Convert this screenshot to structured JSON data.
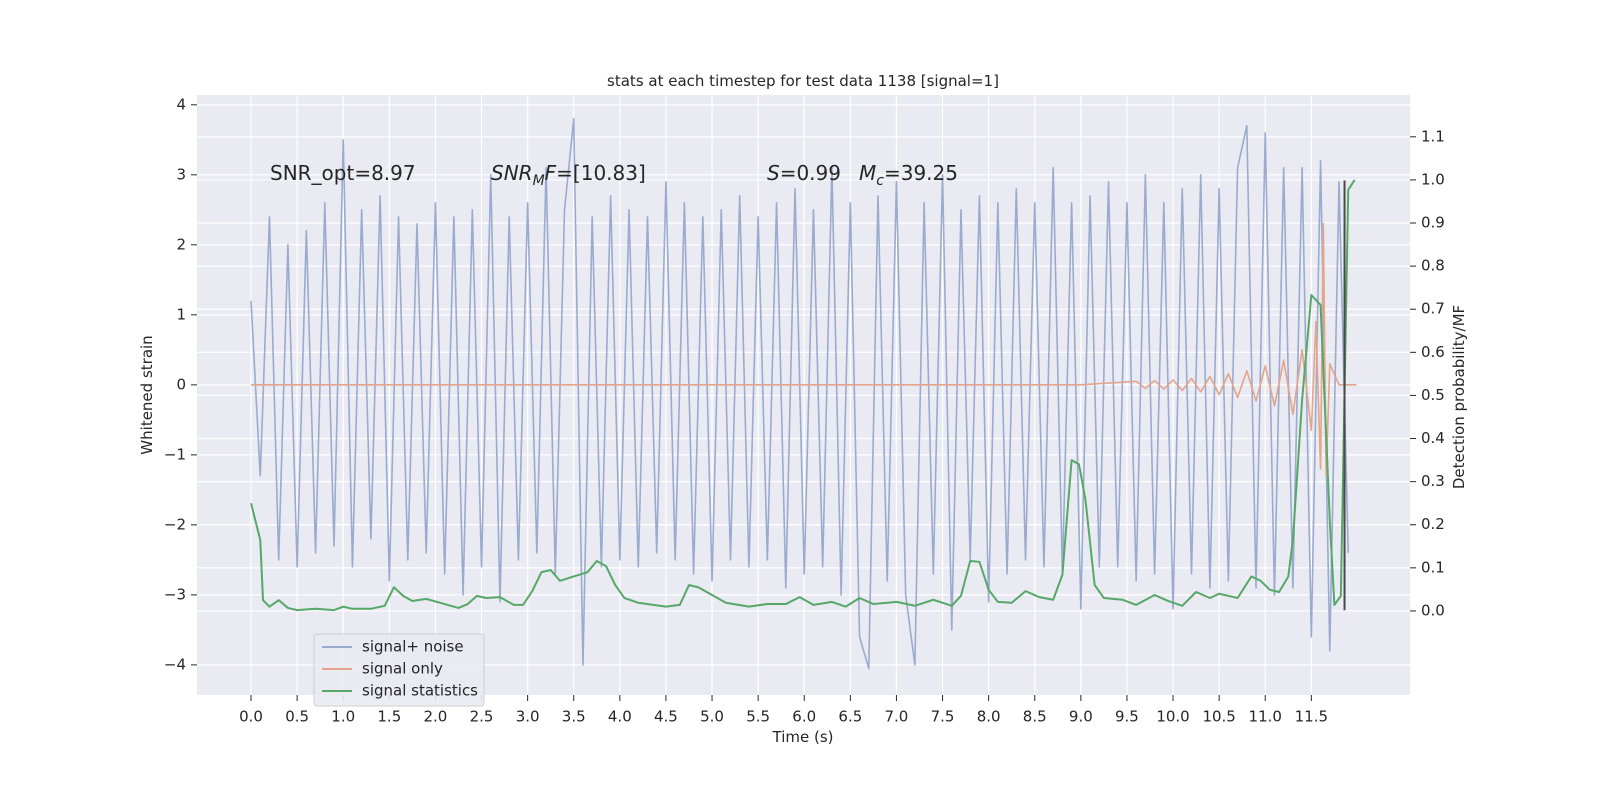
{
  "chart_data": {
    "type": "line",
    "title": "stats at each timestep for test data 1138 [signal=1]",
    "xlabel": "Time (s)",
    "ylabel": "Whitened strain",
    "y2label": "Detection probability/MF",
    "xlim": [
      -0.586,
      12.57
    ],
    "ylim": [
      -4.43,
      4.14
    ],
    "y2lim": [
      -0.195,
      1.197
    ],
    "xticks": [
      {
        "value": 0,
        "label": "0.0"
      },
      0.5,
      {
        "value": 1,
        "label": "1.0"
      },
      1.5,
      {
        "value": 2,
        "label": "2.0"
      },
      2.5,
      {
        "value": 3,
        "label": "3.0"
      },
      3.5,
      {
        "value": 4,
        "label": "4.0"
      },
      4.5,
      {
        "value": 5,
        "label": "5.0"
      },
      5.5,
      {
        "value": 6,
        "label": "6.0"
      },
      6.5,
      {
        "value": 7,
        "label": "7.0"
      },
      7.5,
      {
        "value": 8,
        "label": "8.0"
      },
      8.5,
      {
        "value": 9,
        "label": "9.0"
      },
      9.5,
      {
        "value": 10,
        "label": "10.0"
      },
      10.5,
      {
        "value": 11,
        "label": "11.0"
      },
      11.5
    ],
    "yticks": [
      {
        "value": -4,
        "label": "−4"
      },
      {
        "value": -3,
        "label": "−3"
      },
      {
        "value": -2,
        "label": "−2"
      },
      {
        "value": -1,
        "label": "−1"
      },
      0,
      1,
      2,
      3,
      4
    ],
    "y2ticks": [
      {
        "value": 0,
        "label": "0.0"
      },
      0.1,
      0.2,
      0.3,
      0.4,
      0.5,
      0.6,
      0.7,
      0.8,
      0.9,
      {
        "value": 1,
        "label": "1.0"
      },
      1.1
    ],
    "grid": true,
    "background": "#eaeaf2",
    "legend": "lower left",
    "annotations": [
      {
        "parts": [
          {
            "text": "SNR_opt=8.97"
          }
        ]
      },
      {
        "parts": [
          {
            "text": "SNR",
            "style": "italic"
          },
          {
            "text": "M",
            "style": "sub"
          },
          {
            "text": "F",
            "style": "italic"
          },
          {
            "text": "=[10.83]"
          }
        ]
      },
      {
        "parts": [
          {
            "text": "S",
            "style": "italic"
          },
          {
            "text": "=0.99"
          }
        ]
      },
      {
        "parts": [
          {
            "text": "M",
            "style": "italic"
          },
          {
            "text": "c",
            "style": "sub"
          },
          {
            "text": "=39.25"
          }
        ]
      }
    ],
    "vline": {
      "x": 11.86,
      "ymin": -3.22,
      "ymax": 2.92,
      "color": "#4a4a4a"
    },
    "series": [
      {
        "name": "signal+ noise",
        "color": "#9aabcf",
        "x": [
          0,
          0.1,
          0.2,
          0.3,
          0.4,
          0.5,
          0.6,
          0.7,
          0.8,
          0.9,
          1,
          1.1,
          1.2,
          1.3,
          1.4,
          1.5,
          1.6,
          1.7,
          1.8,
          1.9,
          2,
          2.1,
          2.2,
          2.3,
          2.4,
          2.5,
          2.6,
          2.7,
          2.8,
          2.9,
          3,
          3.1,
          3.2,
          3.3,
          3.4,
          3.5,
          3.6,
          3.7,
          3.8,
          3.9,
          4,
          4.1,
          4.2,
          4.3,
          4.4,
          4.5,
          4.6,
          4.7,
          4.8,
          4.9,
          5,
          5.1,
          5.2,
          5.3,
          5.4,
          5.5,
          5.6,
          5.7,
          5.8,
          5.9,
          6,
          6.1,
          6.2,
          6.3,
          6.4,
          6.5,
          6.6,
          6.7,
          6.8,
          6.9,
          7,
          7.1,
          7.2,
          7.3,
          7.4,
          7.5,
          7.6,
          7.7,
          7.8,
          7.9,
          8,
          8.1,
          8.2,
          8.3,
          8.4,
          8.5,
          8.6,
          8.7,
          8.8,
          8.9,
          9,
          9.1,
          9.2,
          9.3,
          9.4,
          9.5,
          9.6,
          9.7,
          9.8,
          9.9,
          10,
          10.1,
          10.2,
          10.3,
          10.4,
          10.5,
          10.6,
          10.7,
          10.8,
          10.9,
          11,
          11.1,
          11.2,
          11.3,
          11.4,
          11.5,
          11.6,
          11.7,
          11.8,
          11.9
        ],
        "values": [
          1.2,
          -1.3,
          2.4,
          -2.5,
          2.0,
          -2.6,
          2.2,
          -2.4,
          2.6,
          -2.3,
          3.5,
          -2.6,
          2.5,
          -2.2,
          2.7,
          -2.8,
          2.4,
          -2.5,
          2.3,
          -2.4,
          2.6,
          -2.7,
          2.4,
          -3.0,
          2.5,
          -2.6,
          3.0,
          -3.1,
          2.4,
          -2.5,
          2.6,
          -2.4,
          3.1,
          -2.7,
          2.5,
          3.8,
          -4.0,
          2.4,
          -2.6,
          2.7,
          -2.5,
          2.5,
          -2.6,
          2.4,
          -2.4,
          2.9,
          -2.5,
          2.6,
          -2.7,
          2.4,
          -2.8,
          2.5,
          -2.5,
          2.7,
          -2.6,
          2.4,
          -2.5,
          2.6,
          -2.9,
          2.8,
          -2.7,
          2.5,
          -2.6,
          3.1,
          -3.0,
          2.6,
          -3.6,
          -4.05,
          2.7,
          -2.8,
          2.9,
          -3.0,
          -4.0,
          2.6,
          -2.7,
          3.0,
          -3.5,
          2.5,
          -2.5,
          2.7,
          -3.1,
          2.6,
          -2.7,
          2.8,
          -2.5,
          2.6,
          -2.6,
          3.1,
          -2.7,
          2.6,
          -3.2,
          2.7,
          -2.6,
          2.9,
          -2.6,
          2.6,
          -2.8,
          3.0,
          -2.7,
          2.6,
          -3.2,
          2.8,
          -2.7,
          3.0,
          -2.9,
          2.8,
          -2.8,
          3.1,
          3.7,
          -2.9,
          3.6,
          -3.0,
          3.1,
          -2.9,
          3.1,
          -3.6,
          3.2,
          -3.8,
          2.9,
          -2.4
        ]
      },
      {
        "name": "signal only",
        "color": "#e3a58c",
        "x": [
          0,
          9.0,
          9.6,
          9.7,
          9.8,
          9.9,
          10.0,
          10.1,
          10.2,
          10.3,
          10.4,
          10.5,
          10.6,
          10.7,
          10.8,
          10.9,
          11.0,
          11.1,
          11.2,
          11.3,
          11.4,
          11.5,
          11.55,
          11.6,
          11.63,
          11.66,
          11.7,
          11.8,
          11.99
        ],
        "values": [
          0,
          0,
          0.05,
          -0.05,
          0.06,
          -0.06,
          0.07,
          -0.08,
          0.09,
          -0.1,
          0.12,
          -0.14,
          0.16,
          -0.18,
          0.2,
          -0.23,
          0.27,
          -0.3,
          0.35,
          -0.42,
          0.5,
          -0.65,
          0.9,
          -1.2,
          2.3,
          -1.3,
          0.3,
          0,
          0
        ]
      },
      {
        "name": "signal statistics",
        "color": "#55a868",
        "axis": "y2",
        "x": [
          0,
          0.1,
          0.13,
          0.2,
          0.3,
          0.4,
          0.5,
          0.7,
          0.9,
          1.0,
          1.1,
          1.3,
          1.45,
          1.55,
          1.65,
          1.75,
          1.9,
          2.1,
          2.25,
          2.35,
          2.45,
          2.55,
          2.7,
          2.85,
          2.95,
          3.05,
          3.15,
          3.25,
          3.35,
          3.5,
          3.65,
          3.75,
          3.85,
          3.95,
          4.05,
          4.2,
          4.5,
          4.65,
          4.75,
          4.85,
          5.0,
          5.15,
          5.4,
          5.6,
          5.8,
          5.95,
          6.1,
          6.3,
          6.45,
          6.6,
          6.75,
          7.0,
          7.2,
          7.4,
          7.6,
          7.7,
          7.8,
          7.9,
          8.0,
          8.1,
          8.25,
          8.4,
          8.55,
          8.7,
          8.8,
          8.9,
          8.98,
          9.05,
          9.15,
          9.25,
          9.45,
          9.6,
          9.8,
          9.95,
          10.1,
          10.25,
          10.4,
          10.5,
          10.7,
          10.85,
          10.95,
          11.05,
          11.15,
          11.25,
          11.3,
          11.4,
          11.5,
          11.6,
          11.7,
          11.75,
          11.82,
          11.9,
          11.97
        ],
        "values": [
          0.25,
          0.165,
          0.025,
          0.01,
          0.025,
          0.007,
          0.002,
          0.005,
          0.002,
          0.01,
          0.005,
          0.005,
          0.012,
          0.055,
          0.035,
          0.023,
          0.028,
          0.016,
          0.007,
          0.016,
          0.035,
          0.03,
          0.032,
          0.014,
          0.014,
          0.046,
          0.09,
          0.095,
          0.07,
          0.08,
          0.09,
          0.116,
          0.104,
          0.06,
          0.03,
          0.019,
          0.01,
          0.014,
          0.06,
          0.055,
          0.037,
          0.019,
          0.01,
          0.016,
          0.016,
          0.032,
          0.014,
          0.021,
          0.01,
          0.03,
          0.016,
          0.021,
          0.012,
          0.026,
          0.012,
          0.035,
          0.116,
          0.114,
          0.049,
          0.021,
          0.019,
          0.046,
          0.032,
          0.026,
          0.084,
          0.35,
          0.34,
          0.258,
          0.06,
          0.03,
          0.026,
          0.014,
          0.037,
          0.023,
          0.012,
          0.044,
          0.03,
          0.04,
          0.03,
          0.08,
          0.07,
          0.049,
          0.044,
          0.08,
          0.165,
          0.49,
          0.733,
          0.71,
          0.21,
          0.014,
          0.035,
          0.977,
          1.0
        ]
      }
    ]
  }
}
